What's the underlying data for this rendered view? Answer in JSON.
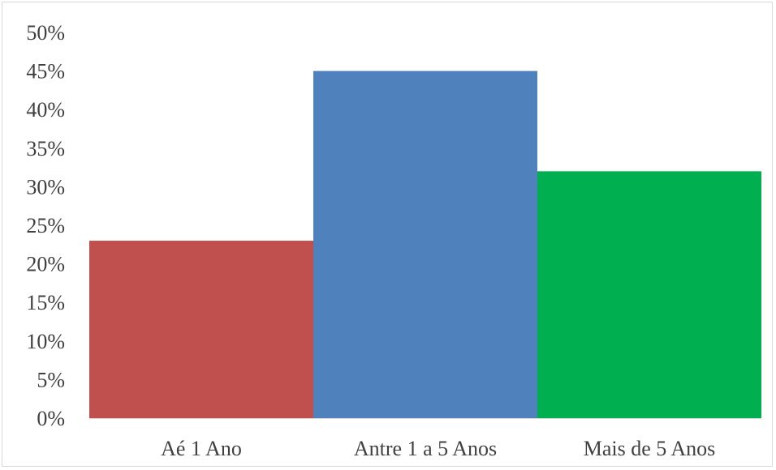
{
  "chart_data": {
    "type": "bar",
    "categories": [
      "Aé 1 Ano",
      "Antre 1 a 5 Anos",
      "Mais de 5 Anos"
    ],
    "values": [
      23,
      45,
      32
    ],
    "colors": [
      "#c0504d",
      "#4f81bd",
      "#00b050"
    ],
    "title": "",
    "xlabel": "",
    "ylabel": "",
    "ylim": [
      0,
      50
    ],
    "ytick_step": 5,
    "ytick_labels": [
      "0%",
      "5%",
      "10%",
      "15%",
      "20%",
      "25%",
      "30%",
      "35%",
      "40%",
      "45%",
      "50%"
    ],
    "grid": false,
    "legend": "none"
  }
}
